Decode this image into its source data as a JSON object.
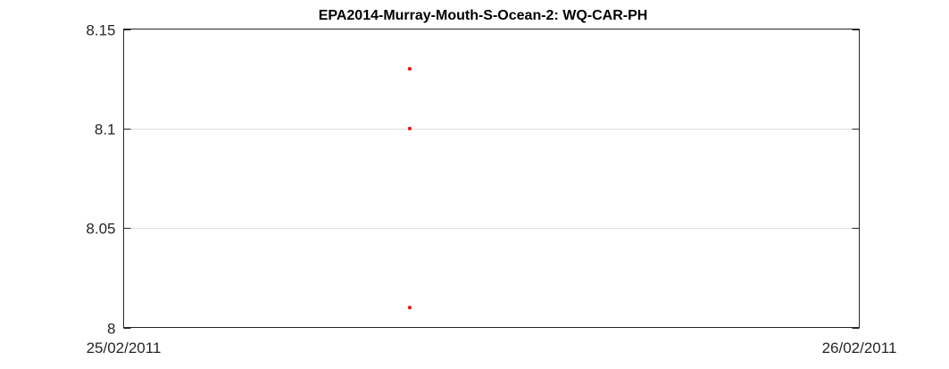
{
  "chart_data": {
    "type": "scatter",
    "title": "EPA2014-Murray-Mouth-S-Ocean-2: WQ-CAR-PH",
    "xlabel": "",
    "ylabel": "",
    "xlim": [
      "25/02/2011",
      "26/02/2011"
    ],
    "ylim": [
      8,
      8.15
    ],
    "x_ticks": [
      "25/02/2011",
      "26/02/2011"
    ],
    "y_ticks": [
      "8",
      "8.05",
      "8.1",
      "8.15"
    ],
    "grid": "horizontal only",
    "legend": "none",
    "marker_color": "#ff0000",
    "series": [
      {
        "x": [
          "25/02/2011 09:20",
          "25/02/2011 09:20",
          "25/02/2011 09:20"
        ],
        "y": [
          8.13,
          8.1,
          8.01
        ]
      }
    ]
  }
}
